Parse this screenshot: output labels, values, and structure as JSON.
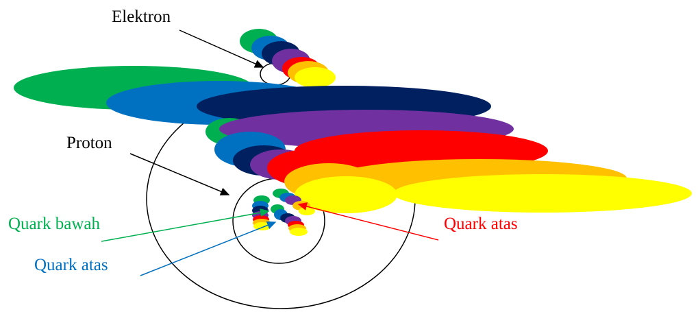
{
  "labels": {
    "electron": "Elektron",
    "proton": "Proton",
    "quark_down": "Quark bawah",
    "quark_up_left": "Quark atas",
    "quark_up_right": "Quark atas"
  }
}
